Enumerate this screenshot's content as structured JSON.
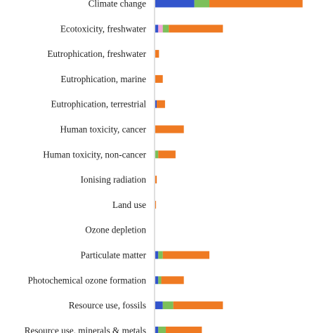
{
  "chart_data": {
    "type": "bar",
    "orientation": "horizontal",
    "stacked": true,
    "grid": false,
    "legend": "none",
    "categories": [
      "Climate change",
      "Ecotoxicity, freshwater",
      "Eutrophication, freshwater",
      "Eutrophication, marine",
      "Eutrophication, terrestrial",
      "Human toxicity, cancer",
      "Human toxicity, non-cancer",
      "Ionising radiation",
      "Land use",
      "Ozone depletion",
      "Particulate matter",
      "Photochemical ozone formation",
      "Resource use, fossils",
      "Resource use, minerals & metals"
    ],
    "series": [
      {
        "color": "#3355cc",
        "values": [
          26,
          2,
          0,
          0,
          1,
          0,
          0,
          0,
          0,
          0,
          2,
          2,
          5,
          2
        ]
      },
      {
        "color": "#f4a6d7",
        "values": [
          0,
          3,
          0,
          0,
          0,
          0,
          0,
          0,
          0,
          0,
          0,
          0,
          0,
          0
        ]
      },
      {
        "color": "#7cc05a",
        "values": [
          10,
          4,
          0,
          0,
          0,
          0,
          2,
          0,
          0,
          0,
          3,
          2,
          7,
          5
        ]
      },
      {
        "color": "#ef7a22",
        "values": [
          62,
          36,
          2.5,
          5,
          5.5,
          19,
          11.5,
          1,
          0.5,
          0,
          31,
          15,
          33,
          24
        ]
      }
    ]
  }
}
